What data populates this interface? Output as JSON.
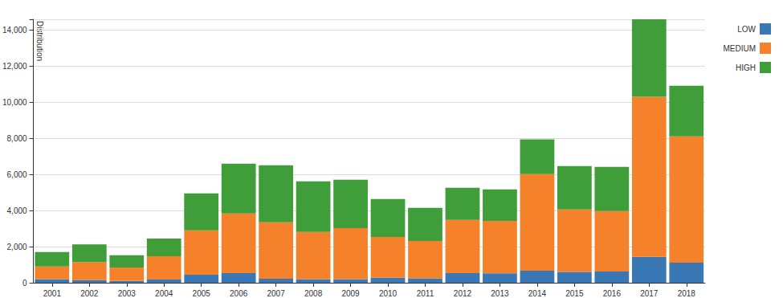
{
  "chart_data": {
    "type": "bar",
    "stacked": true,
    "grid": true,
    "legend": "top-right",
    "y_label": "Distribution",
    "categories": [
      "2001",
      "2002",
      "2003",
      "2004",
      "2005",
      "2006",
      "2007",
      "2008",
      "2009",
      "2010",
      "2011",
      "2012",
      "2013",
      "2014",
      "2015",
      "2016",
      "2017",
      "2018"
    ],
    "series": [
      {
        "name": "LOW",
        "color": "#3a78b5",
        "values": [
          200,
          150,
          100,
          180,
          450,
          530,
          220,
          200,
          200,
          280,
          250,
          530,
          520,
          670,
          600,
          620,
          1430,
          1110
        ]
      },
      {
        "name": "MEDIUM",
        "color": "#f5822a",
        "values": [
          700,
          1000,
          750,
          1290,
          2450,
          3310,
          3130,
          2610,
          2830,
          2260,
          2070,
          2950,
          2910,
          5350,
          3460,
          3350,
          8870,
          7000
        ]
      },
      {
        "name": "HIGH",
        "color": "#3f9d3a",
        "values": [
          800,
          980,
          680,
          980,
          2050,
          2760,
          3160,
          2810,
          2680,
          2100,
          1830,
          1780,
          1740,
          1920,
          2410,
          2450,
          4300,
          2810
        ]
      }
    ],
    "ylim": [
      0,
      14600
    ],
    "yticks": [
      0,
      {
        "value": 2000,
        "label": "2,000"
      },
      {
        "value": 4000,
        "label": "4,000"
      },
      {
        "value": 6000,
        "label": "6,000"
      },
      {
        "value": 8000,
        "label": "8,000"
      },
      {
        "value": 10000,
        "label": "10,000"
      },
      {
        "value": 12000,
        "label": "12,000"
      },
      {
        "value": 14000,
        "label": "14,000"
      }
    ]
  }
}
